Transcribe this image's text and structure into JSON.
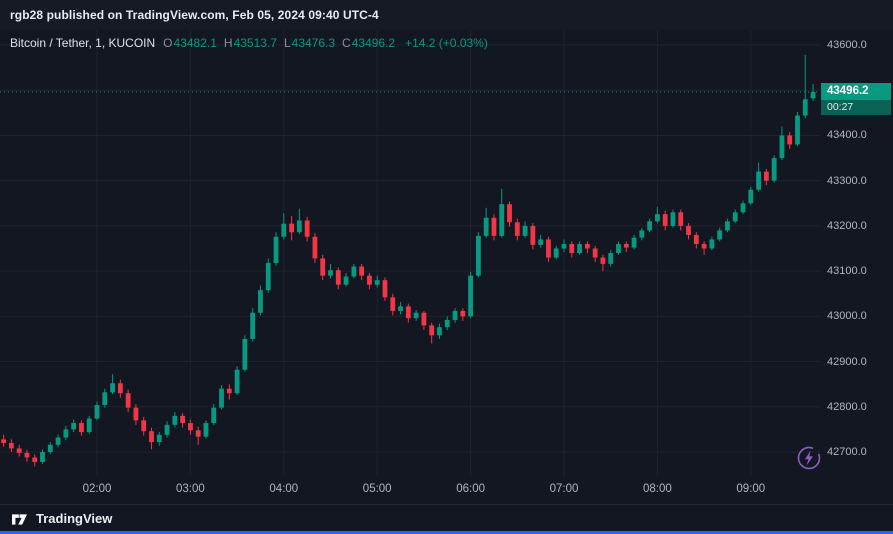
{
  "topbar": {
    "text": "rgb28 published on TradingView.com, Feb 05, 2024 09:40 UTC-4"
  },
  "legend": {
    "symbol": "Bitcoin / Tether, 1, KUCOIN",
    "ohlc": [
      {
        "label": "O",
        "value": "43482.1"
      },
      {
        "label": "H",
        "value": "43513.7"
      },
      {
        "label": "L",
        "value": "43476.3"
      },
      {
        "label": "C",
        "value": "43496.2"
      }
    ],
    "change": "+14.2 (+0.03%)"
  },
  "price_scale": {
    "labels": [
      "43600.0",
      "43400.0",
      "43300.0",
      "43200.0",
      "43100.0",
      "43000.0",
      "42900.0",
      "42800.0",
      "42700.0"
    ]
  },
  "time_scale": [
    "02:00",
    "03:00",
    "04:00",
    "05:00",
    "06:00",
    "07:00",
    "08:00",
    "09:00"
  ],
  "last_price": {
    "value": "43496.2",
    "countdown": "00:27",
    "price": 43496.2
  },
  "footer": {
    "brand": "TradingView"
  },
  "colors": {
    "up": "#089981",
    "down": "#f23645",
    "grid": "#1e2330",
    "axis_text": "#b2b5be",
    "badge_bg": "#089981",
    "countdown_bg": "#0a6156",
    "accent_blue": "#2962ff",
    "purple": "#a06be0"
  },
  "chart_data": {
    "type": "candlestick",
    "title": "Bitcoin / Tether, 1, KUCOIN",
    "symbol": "BTC/USDT",
    "exchange": "KUCOIN",
    "interval_label": "1",
    "sampling_note": "values estimated from pixels at ~5-minute resolution",
    "last": {
      "open": 43482.1,
      "high": 43513.7,
      "low": 43476.3,
      "close": 43496.2,
      "change": 14.2,
      "change_pct": 0.03
    },
    "x_axis": {
      "labels": [
        "02:00",
        "03:00",
        "04:00",
        "05:00",
        "06:00",
        "07:00",
        "08:00",
        "09:00"
      ],
      "start": "01:00",
      "end": "09:40"
    },
    "y_axis": {
      "min": 42640,
      "max": 43620,
      "tick_step": 100,
      "ticks": [
        42700,
        42800,
        42900,
        43000,
        43100,
        43200,
        43300,
        43400,
        43500,
        43600
      ]
    },
    "candles": [
      [
        "01:00",
        42728,
        42738,
        42712,
        42720
      ],
      [
        "01:05",
        42720,
        42728,
        42700,
        42708
      ],
      [
        "01:10",
        42708,
        42716,
        42690,
        42698
      ],
      [
        "01:15",
        42698,
        42705,
        42678,
        42688
      ],
      [
        "01:20",
        42688,
        42695,
        42668,
        42678
      ],
      [
        "01:25",
        42678,
        42706,
        42674,
        42700
      ],
      [
        "01:30",
        42700,
        42722,
        42695,
        42716
      ],
      [
        "01:35",
        42716,
        42738,
        42710,
        42732
      ],
      [
        "01:40",
        42732,
        42758,
        42726,
        42750
      ],
      [
        "01:45",
        42750,
        42772,
        42744,
        42764
      ],
      [
        "01:50",
        42764,
        42770,
        42736,
        42744
      ],
      [
        "01:55",
        42744,
        42780,
        42740,
        42774
      ],
      [
        "02:00",
        42774,
        42812,
        42770,
        42804
      ],
      [
        "02:05",
        42804,
        42840,
        42798,
        42832
      ],
      [
        "02:10",
        42832,
        42872,
        42828,
        42852
      ],
      [
        "02:15",
        42852,
        42860,
        42820,
        42830
      ],
      [
        "02:20",
        42830,
        42838,
        42788,
        42798
      ],
      [
        "02:25",
        42798,
        42806,
        42760,
        42770
      ],
      [
        "02:30",
        42770,
        42778,
        42736,
        42746
      ],
      [
        "02:35",
        42746,
        42754,
        42706,
        42722
      ],
      [
        "02:40",
        42722,
        42744,
        42714,
        42738
      ],
      [
        "02:45",
        42738,
        42768,
        42732,
        42760
      ],
      [
        "02:50",
        42760,
        42788,
        42754,
        42780
      ],
      [
        "02:55",
        42780,
        42786,
        42754,
        42764
      ],
      [
        "03:00",
        42764,
        42772,
        42738,
        42748
      ],
      [
        "03:05",
        42748,
        42756,
        42716,
        42734
      ],
      [
        "03:10",
        42734,
        42770,
        42730,
        42764
      ],
      [
        "03:15",
        42764,
        42806,
        42760,
        42798
      ],
      [
        "03:20",
        42798,
        42848,
        42794,
        42840
      ],
      [
        "03:25",
        42840,
        42850,
        42816,
        42830
      ],
      [
        "03:30",
        42830,
        42890,
        42826,
        42882
      ],
      [
        "03:35",
        42882,
        42958,
        42878,
        42950
      ],
      [
        "03:40",
        42950,
        43018,
        42944,
        43008
      ],
      [
        "03:45",
        43008,
        43068,
        43002,
        43058
      ],
      [
        "03:50",
        43058,
        43128,
        43052,
        43118
      ],
      [
        "03:55",
        43118,
        43186,
        43112,
        43176
      ],
      [
        "04:00",
        43176,
        43228,
        43170,
        43205
      ],
      [
        "04:05",
        43205,
        43222,
        43168,
        43186
      ],
      [
        "04:10",
        43186,
        43238,
        43182,
        43212
      ],
      [
        "04:15",
        43212,
        43220,
        43166,
        43176
      ],
      [
        "04:20",
        43176,
        43184,
        43118,
        43128
      ],
      [
        "04:25",
        43128,
        43136,
        43080,
        43090
      ],
      [
        "04:30",
        43090,
        43116,
        43084,
        43102
      ],
      [
        "04:35",
        43102,
        43108,
        43060,
        43070
      ],
      [
        "04:40",
        43070,
        43096,
        43066,
        43088
      ],
      [
        "04:45",
        43088,
        43116,
        43084,
        43110
      ],
      [
        "04:50",
        43110,
        43116,
        43080,
        43090
      ],
      [
        "04:55",
        43090,
        43096,
        43060,
        43070
      ],
      [
        "05:00",
        43070,
        43090,
        43064,
        43080
      ],
      [
        "05:05",
        43080,
        43086,
        43034,
        43042
      ],
      [
        "05:10",
        43042,
        43050,
        43002,
        43012
      ],
      [
        "05:15",
        43012,
        43032,
        43004,
        43022
      ],
      [
        "05:20",
        43022,
        43028,
        42986,
        42996
      ],
      [
        "05:25",
        42996,
        43014,
        42990,
        43008
      ],
      [
        "05:30",
        43008,
        43012,
        42970,
        42980
      ],
      [
        "05:35",
        42980,
        42986,
        42940,
        42958
      ],
      [
        "05:40",
        42958,
        42984,
        42950,
        42976
      ],
      [
        "05:45",
        42976,
        43000,
        42970,
        42992
      ],
      [
        "05:50",
        42992,
        43018,
        42986,
        43012
      ],
      [
        "05:55",
        43012,
        43018,
        42990,
        43000
      ],
      [
        "06:00",
        43000,
        43098,
        42996,
        43090
      ],
      [
        "06:05",
        43090,
        43186,
        43086,
        43178
      ],
      [
        "06:10",
        43178,
        43240,
        43174,
        43218
      ],
      [
        "06:15",
        43218,
        43226,
        43168,
        43178
      ],
      [
        "06:20",
        43178,
        43282,
        43174,
        43248
      ],
      [
        "06:25",
        43248,
        43254,
        43198,
        43208
      ],
      [
        "06:30",
        43208,
        43216,
        43168,
        43178
      ],
      [
        "06:35",
        43178,
        43210,
        43174,
        43200
      ],
      [
        "06:40",
        43200,
        43206,
        43148,
        43158
      ],
      [
        "06:45",
        43158,
        43180,
        43152,
        43170
      ],
      [
        "06:50",
        43170,
        43176,
        43120,
        43130
      ],
      [
        "06:55",
        43130,
        43156,
        43126,
        43150
      ],
      [
        "07:00",
        43150,
        43170,
        43142,
        43160
      ],
      [
        "07:05",
        43160,
        43166,
        43130,
        43140
      ],
      [
        "07:10",
        43140,
        43166,
        43136,
        43160
      ],
      [
        "07:15",
        43160,
        43166,
        43140,
        43150
      ],
      [
        "07:20",
        43150,
        43156,
        43120,
        43130
      ],
      [
        "07:25",
        43130,
        43136,
        43100,
        43116
      ],
      [
        "07:30",
        43116,
        43146,
        43110,
        43140
      ],
      [
        "07:35",
        43140,
        43166,
        43136,
        43160
      ],
      [
        "07:40",
        43160,
        43166,
        43142,
        43152
      ],
      [
        "07:45",
        43152,
        43180,
        43148,
        43174
      ],
      [
        "07:50",
        43174,
        43196,
        43168,
        43190
      ],
      [
        "07:55",
        43190,
        43216,
        43186,
        43210
      ],
      [
        "08:00",
        43210,
        43242,
        43206,
        43226
      ],
      [
        "08:05",
        43226,
        43234,
        43190,
        43200
      ],
      [
        "08:10",
        43200,
        43236,
        43196,
        43230
      ],
      [
        "08:15",
        43230,
        43236,
        43190,
        43200
      ],
      [
        "08:20",
        43200,
        43206,
        43170,
        43180
      ],
      [
        "08:25",
        43180,
        43186,
        43150,
        43160
      ],
      [
        "08:30",
        43160,
        43166,
        43136,
        43150
      ],
      [
        "08:35",
        43150,
        43176,
        43146,
        43170
      ],
      [
        "08:40",
        43170,
        43196,
        43166,
        43190
      ],
      [
        "08:45",
        43190,
        43216,
        43186,
        43210
      ],
      [
        "08:50",
        43210,
        43236,
        43206,
        43230
      ],
      [
        "08:55",
        43230,
        43256,
        43226,
        43250
      ],
      [
        "09:00",
        43250,
        43286,
        43246,
        43280
      ],
      [
        "09:05",
        43280,
        43340,
        43276,
        43320
      ],
      [
        "09:10",
        43320,
        43326,
        43290,
        43300
      ],
      [
        "09:15",
        43300,
        43356,
        43296,
        43350
      ],
      [
        "09:20",
        43350,
        43420,
        43346,
        43400
      ],
      [
        "09:25",
        43400,
        43408,
        43370,
        43380
      ],
      [
        "09:30",
        43380,
        43452,
        43376,
        43444
      ],
      [
        "09:35",
        43444,
        43578,
        43438,
        43480
      ],
      [
        "09:40",
        43482.1,
        43513.7,
        43476.3,
        43496.2
      ]
    ]
  }
}
